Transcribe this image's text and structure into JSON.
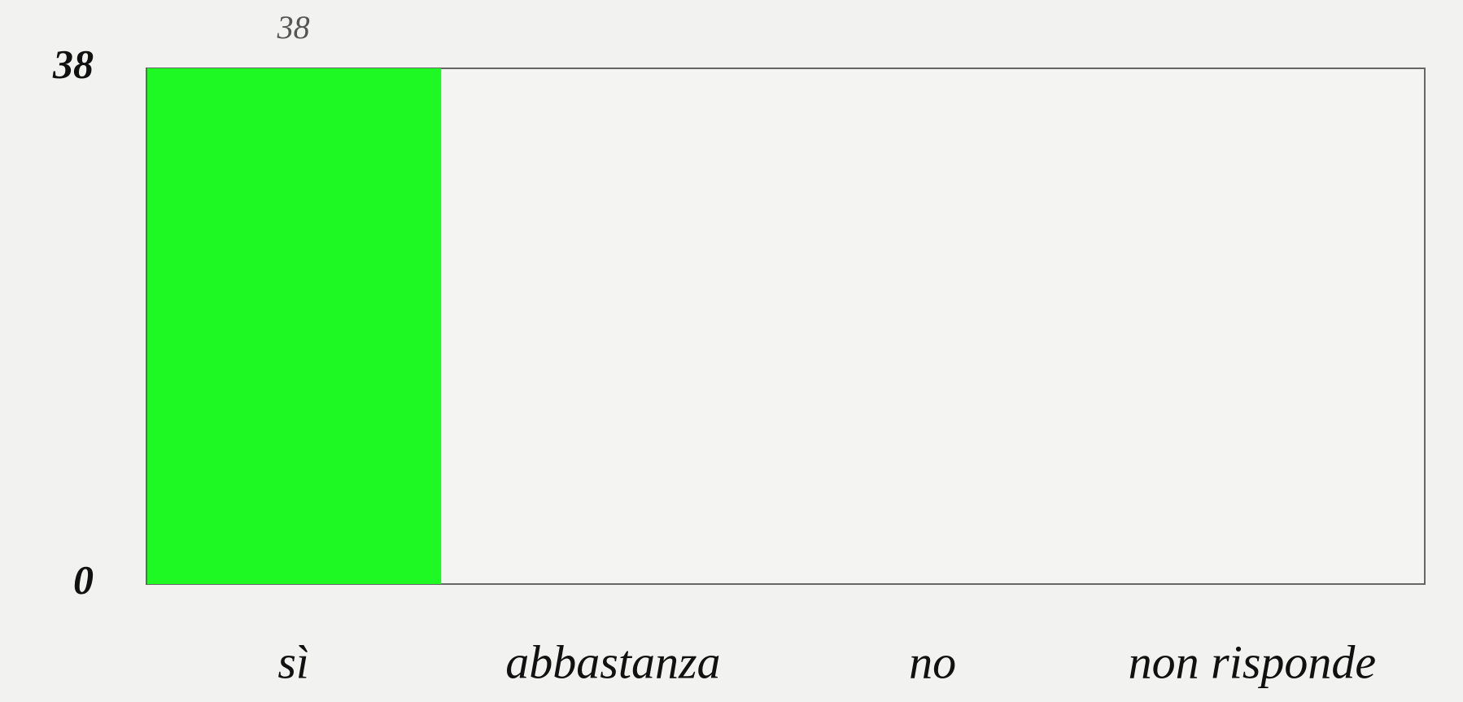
{
  "chart_data": {
    "type": "bar",
    "categories": [
      "sì",
      "abbastanza",
      "no",
      "non risponde"
    ],
    "values": [
      38,
      0,
      0,
      0
    ],
    "value_labels": [
      "38",
      null,
      null,
      null
    ],
    "color": "#1ff923",
    "ylim": [
      0,
      38
    ],
    "yticks": [
      0,
      38
    ],
    "grid": false
  }
}
